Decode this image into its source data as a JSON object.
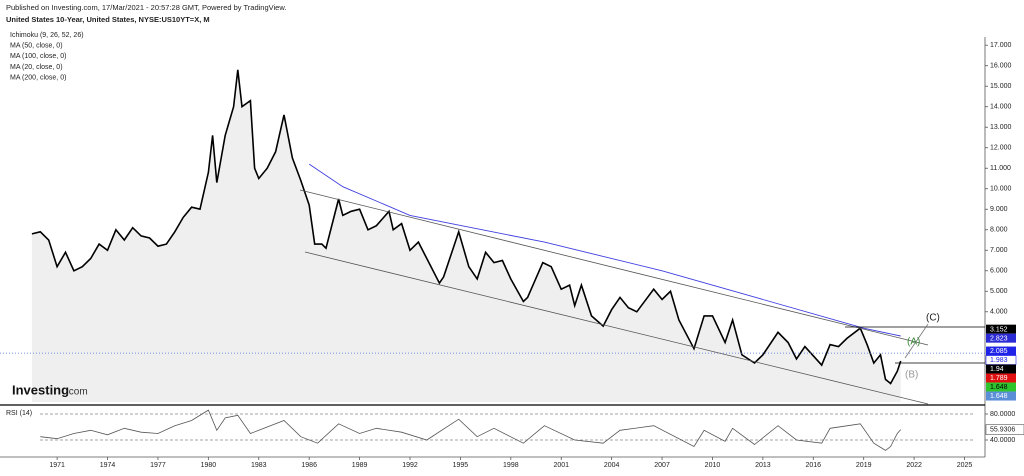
{
  "header": {
    "published": "Published on Investing.com, 17/Mar/2021 - 20:57:28 GMT, Powered by TradingView.",
    "symbol": "United States 10-Year, United States, NYSE:US10YT=X, M"
  },
  "watermark": {
    "brand": "Investing",
    "suffix": ".com"
  },
  "chart_data": [
    {
      "type": "line",
      "indicators": [
        "Ichimoku (9, 26, 52, 26)",
        "MA (50, close, 0)",
        "MA (100, close, 0)",
        "MA (20, close, 0)"
      ],
      "annotations": [
        "(A)",
        "(B)",
        "(C)"
      ],
      "xlim": [
        1967.6,
        2026.1
      ],
      "xticks": [
        1971,
        1974,
        1977,
        1980,
        1983,
        1986,
        1989,
        1992,
        1995,
        1998,
        2001,
        2004,
        2007,
        2010,
        2013,
        2016,
        2019,
        2022,
        2025
      ],
      "ylim": [
        -0.4,
        17.4
      ],
      "yticks": [
        {
          "value": 4,
          "label": "4.000"
        },
        {
          "value": 5,
          "label": "5.000"
        },
        {
          "value": 6,
          "label": "6.000"
        },
        {
          "value": 7,
          "label": "7.000"
        },
        {
          "value": 8,
          "label": "8.000"
        },
        {
          "value": 9,
          "label": "9.000"
        },
        {
          "value": 10,
          "label": "10.000"
        },
        {
          "value": 11,
          "label": "11.000"
        },
        {
          "value": 12,
          "label": "12.000"
        },
        {
          "value": 13,
          "label": "13.000"
        },
        {
          "value": 14,
          "label": "14.000"
        },
        {
          "value": 15,
          "label": "15.000"
        },
        {
          "value": 16,
          "label": "16.000"
        },
        {
          "value": 17,
          "label": "17.000"
        }
      ],
      "series": [
        {
          "color": "#000000",
          "x": [
            1969.5,
            1970,
            1970.5,
            1971,
            1971.5,
            1972,
            1972.5,
            1973,
            1973.5,
            1974,
            1974.5,
            1975,
            1975.5,
            1976,
            1976.5,
            1977,
            1977.5,
            1978,
            1978.5,
            1979,
            1979.5,
            1980,
            1980.25,
            1980.5,
            1981,
            1981.5,
            1981.75,
            1982,
            1982.5,
            1982.75,
            1983,
            1983.5,
            1984,
            1984.5,
            1985,
            1985.5,
            1986,
            1986.33,
            1986.75,
            1987,
            1987.75,
            1988,
            1988.5,
            1989,
            1989.5,
            1990,
            1990.75,
            1991,
            1991.5,
            1992,
            1992.5,
            1993,
            1993.75,
            1994,
            1994.9,
            1995.5,
            1996,
            1996.5,
            1997,
            1997.5,
            1998,
            1998.75,
            1999,
            1999.9,
            2000.4,
            2001,
            2001.5,
            2001.8,
            2002.2,
            2002.8,
            2003.5,
            2004,
            2004.5,
            2005,
            2005.5,
            2006.5,
            2007,
            2007.5,
            2008,
            2008.9,
            2009.5,
            2010,
            2010.75,
            2011.2,
            2011.75,
            2012.5,
            2013,
            2013.9,
            2014.5,
            2015,
            2015.5,
            2016.5,
            2017,
            2017.5,
            2018,
            2018.8,
            2019.2,
            2019.6,
            2020,
            2020.3,
            2020.6,
            2021,
            2021.2
          ],
          "values": [
            7.8,
            7.9,
            7.5,
            6.2,
            6.9,
            6.0,
            6.2,
            6.6,
            7.3,
            7.0,
            8.0,
            7.5,
            8.1,
            7.7,
            7.6,
            7.2,
            7.3,
            7.9,
            8.6,
            9.1,
            9.0,
            10.8,
            12.6,
            10.3,
            12.6,
            14.0,
            15.8,
            14.0,
            14.3,
            11.0,
            10.5,
            11.0,
            11.8,
            13.6,
            11.5,
            10.4,
            9.2,
            7.3,
            7.3,
            7.1,
            9.5,
            8.7,
            8.9,
            9.0,
            8.0,
            8.2,
            8.9,
            8.0,
            8.3,
            7.0,
            7.4,
            6.6,
            5.4,
            5.7,
            7.9,
            6.2,
            5.6,
            6.9,
            6.4,
            6.5,
            5.6,
            4.5,
            4.7,
            6.4,
            6.2,
            5.1,
            5.3,
            4.3,
            5.3,
            3.8,
            3.3,
            4.1,
            4.7,
            4.2,
            4.0,
            5.1,
            4.6,
            5.0,
            3.6,
            2.2,
            3.8,
            3.8,
            2.5,
            3.6,
            1.9,
            1.5,
            1.9,
            3.0,
            2.5,
            1.7,
            2.3,
            1.4,
            2.4,
            2.3,
            2.7,
            3.2,
            2.4,
            1.5,
            1.9,
            0.7,
            0.5,
            1.1,
            1.6
          ]
        },
        {
          "name": "MA (200, close, 0)",
          "color": "#3f3fe0",
          "x": [
            1986,
            1988,
            1992,
            2000,
            2007,
            2013,
            2019,
            2021.2
          ],
          "values": [
            11.2,
            10.1,
            8.7,
            7.4,
            6.0,
            4.6,
            3.2,
            2.82
          ]
        }
      ],
      "price_tags": [
        {
          "value": 3.152,
          "color": "#000000",
          "text_color": "#ffffff"
        },
        {
          "value": 2.823,
          "color": "#2b2bd6",
          "text_color": "#ffffff"
        },
        {
          "value": 2.085,
          "color": "#1f23e8",
          "text_color": "#ffffff"
        },
        {
          "value": 1.983,
          "color": "#ffffff",
          "text_color": "#1f23e8"
        },
        {
          "value": 1.94,
          "color": "#000000",
          "text_color": "#ffffff"
        },
        {
          "value": 1.789,
          "color": "#e01010",
          "text_color": "#ffffff"
        },
        {
          "value": 1.648,
          "color": "#2ec42e",
          "text_color": "#000000"
        },
        {
          "value": 1.648,
          "color": "#5a8fd8",
          "text_color": "#ffffff"
        }
      ]
    },
    {
      "type": "line",
      "title": "RSI (14)",
      "color": "#555555",
      "ylim": [
        16.9,
        90.8
      ],
      "yticks": [
        {
          "value": 80,
          "label": "80.0000"
        },
        {
          "value": 40,
          "label": "40.0000"
        }
      ],
      "x": [
        1970,
        1971,
        1972,
        1973,
        1974,
        1975,
        1976,
        1977,
        1978,
        1979,
        1980,
        1980.5,
        1981,
        1981.75,
        1982.5,
        1983,
        1984.5,
        1985.5,
        1986.5,
        1987.75,
        1989,
        1990,
        1991.5,
        1993,
        1994.9,
        1996,
        1997,
        1998.75,
        2000,
        2001.8,
        2003.5,
        2004.5,
        2006.5,
        2008.9,
        2009.5,
        2010.75,
        2011.2,
        2012.5,
        2013.9,
        2015,
        2016.5,
        2017,
        2018.8,
        2019.6,
        2020.3,
        2020.6,
        2021,
        2021.2
      ],
      "values": [
        45,
        42,
        50,
        55,
        48,
        58,
        52,
        50,
        62,
        70,
        86,
        55,
        74,
        78,
        50,
        55,
        70,
        45,
        35,
        65,
        50,
        58,
        52,
        40,
        72,
        45,
        58,
        35,
        62,
        40,
        35,
        55,
        62,
        30,
        55,
        38,
        58,
        33,
        62,
        40,
        35,
        58,
        65,
        35,
        24,
        30,
        50,
        55.9306
      ]
    }
  ]
}
